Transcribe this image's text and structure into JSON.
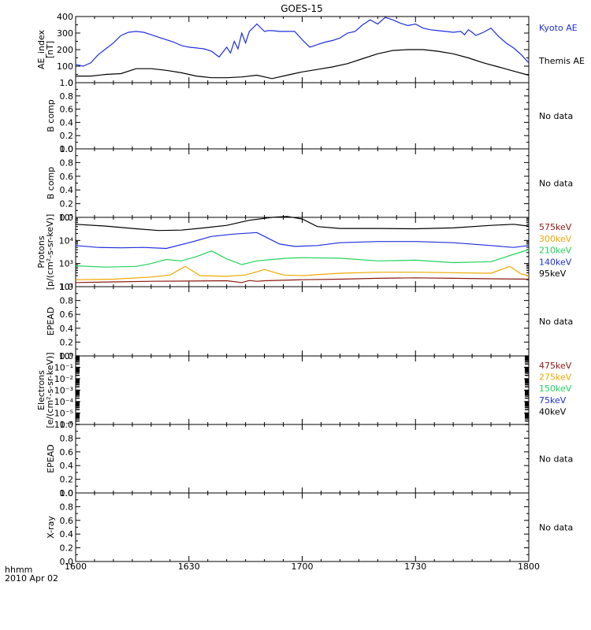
{
  "title": "GOES-15",
  "footer": {
    "hhmm": "hhmm",
    "date": "2010 Apr 02"
  },
  "x_axis": {
    "ticks": [
      {
        "value": 0,
        "label": "1600"
      },
      {
        "value": 30,
        "label": "1630"
      },
      {
        "value": 60,
        "label": "1700"
      },
      {
        "value": 90,
        "label": "1730"
      },
      {
        "value": 120,
        "label": "1800"
      }
    ],
    "minor_step": 5,
    "range": [
      0,
      120
    ]
  },
  "colors": {
    "black": "#000000",
    "blue": "#1f2fd8",
    "green": "#22d35b",
    "orange": "#f0a800",
    "darkred": "#8b1a12"
  },
  "chart_data": [
    {
      "type": "line",
      "panel": "ae",
      "ylabel_lines": [
        "AE_index",
        "[nT]"
      ],
      "ylim": [
        0,
        400
      ],
      "y_ticks": [
        {
          "v": 0,
          "l": "0"
        },
        {
          "v": 100,
          "l": "100"
        },
        {
          "v": 200,
          "l": "200"
        },
        {
          "v": 300,
          "l": "300"
        },
        {
          "v": 400,
          "l": "400"
        }
      ],
      "y_minor": [
        50,
        150,
        250,
        350
      ],
      "series": [
        {
          "name": "Kyoto AE",
          "color_key": "blue",
          "x": [
            0,
            2,
            4,
            6,
            8,
            10,
            12,
            14,
            16,
            18,
            20,
            22,
            24,
            26,
            28,
            30,
            32,
            34,
            36,
            38,
            40,
            41,
            42,
            43,
            44,
            45,
            46,
            48,
            50,
            51,
            52,
            54,
            56,
            58,
            60,
            62,
            64,
            66,
            68,
            70,
            72,
            74,
            76,
            78,
            80,
            82,
            84,
            86,
            88,
            90,
            92,
            94,
            96,
            98,
            100,
            102,
            103,
            104,
            105,
            106,
            108,
            110,
            112,
            114,
            116,
            118,
            120
          ],
          "y": [
            110,
            100,
            120,
            170,
            205,
            240,
            285,
            305,
            310,
            305,
            290,
            275,
            260,
            245,
            225,
            215,
            210,
            205,
            190,
            155,
            215,
            180,
            250,
            205,
            300,
            240,
            310,
            355,
            310,
            315,
            315,
            310,
            310,
            310,
            260,
            215,
            230,
            245,
            255,
            270,
            300,
            310,
            350,
            380,
            355,
            395,
            380,
            360,
            345,
            355,
            330,
            320,
            315,
            310,
            305,
            310,
            290,
            320,
            305,
            285,
            305,
            330,
            280,
            240,
            210,
            170,
            120
          ]
        },
        {
          "name": "Themis AE",
          "color_key": "black",
          "x": [
            0,
            4,
            8,
            12,
            16,
            20,
            24,
            28,
            32,
            36,
            40,
            44,
            48,
            52,
            56,
            60,
            64,
            68,
            72,
            76,
            80,
            84,
            88,
            92,
            96,
            100,
            104,
            108,
            112,
            116,
            120
          ],
          "y": [
            40,
            40,
            50,
            55,
            85,
            85,
            75,
            60,
            40,
            30,
            30,
            35,
            45,
            25,
            45,
            65,
            80,
            95,
            115,
            145,
            175,
            195,
            200,
            200,
            190,
            175,
            150,
            120,
            95,
            70,
            45
          ]
        }
      ]
    },
    {
      "type": "line",
      "panel": "bcomp1",
      "ylabel_lines": [
        "B comp"
      ],
      "ylim": [
        0,
        1
      ],
      "y_ticks": [
        {
          "v": 0,
          "l": "0.0"
        },
        {
          "v": 0.2,
          "l": "0.2"
        },
        {
          "v": 0.4,
          "l": "0.4"
        },
        {
          "v": 0.6,
          "l": "0.6"
        },
        {
          "v": 0.8,
          "l": "0.8"
        },
        {
          "v": 1,
          "l": "1.0"
        }
      ],
      "y_minor": [
        0.1,
        0.3,
        0.5,
        0.7,
        0.9
      ],
      "note": "No data",
      "series": []
    },
    {
      "type": "line",
      "panel": "bcomp2",
      "ylabel_lines": [
        "B comp"
      ],
      "ylim": [
        0,
        1
      ],
      "y_ticks": [
        {
          "v": 0,
          "l": "0.0"
        },
        {
          "v": 0.2,
          "l": "0.2"
        },
        {
          "v": 0.4,
          "l": "0.4"
        },
        {
          "v": 0.6,
          "l": "0.6"
        },
        {
          "v": 0.8,
          "l": "0.8"
        },
        {
          "v": 1,
          "l": "1.0"
        }
      ],
      "y_minor": [
        0.1,
        0.3,
        0.5,
        0.7,
        0.9
      ],
      "note": "No data",
      "series": []
    },
    {
      "type": "line",
      "panel": "protons",
      "scale": "log",
      "ylabel_lines": [
        "Protons",
        "[p/(cm²-s-sr-keV)]"
      ],
      "ylim": [
        100,
        100000
      ],
      "y_ticks": [
        {
          "v": 100,
          "l": "10²"
        },
        {
          "v": 1000,
          "l": "10³"
        },
        {
          "v": 10000,
          "l": "10⁴"
        },
        {
          "v": 100000,
          "l": "10⁵"
        }
      ],
      "series": [
        {
          "name": "575keV",
          "color_key": "darkred",
          "x": [
            0,
            10,
            20,
            30,
            40,
            44,
            46,
            48,
            50,
            60,
            70,
            80,
            90,
            100,
            110,
            120
          ],
          "y": [
            150,
            160,
            170,
            175,
            180,
            150,
            185,
            170,
            180,
            200,
            210,
            230,
            240,
            230,
            220,
            210
          ]
        },
        {
          "name": "300keV",
          "color_key": "orange",
          "x": [
            0,
            10,
            20,
            25,
            29,
            33,
            40,
            45,
            50,
            55,
            60,
            70,
            80,
            90,
            100,
            110,
            115,
            118,
            120
          ],
          "y": [
            200,
            210,
            260,
            320,
            750,
            300,
            280,
            320,
            550,
            320,
            300,
            380,
            420,
            420,
            400,
            380,
            750,
            350,
            300
          ]
        },
        {
          "name": "210keV",
          "color_key": "green",
          "x": [
            0,
            8,
            16,
            20,
            24,
            28,
            32,
            36,
            40,
            44,
            48,
            52,
            56,
            60,
            70,
            80,
            90,
            100,
            110,
            116,
            120
          ],
          "y": [
            800,
            700,
            750,
            1000,
            1500,
            1300,
            2000,
            3500,
            1600,
            900,
            1300,
            1500,
            1700,
            1800,
            1700,
            1300,
            1400,
            1100,
            1200,
            2500,
            4000
          ]
        },
        {
          "name": "140keV",
          "color_key": "blue",
          "x": [
            0,
            6,
            12,
            18,
            24,
            30,
            36,
            42,
            48,
            50,
            54,
            58,
            64,
            70,
            80,
            90,
            100,
            110,
            116,
            120
          ],
          "y": [
            6000,
            5000,
            4800,
            5000,
            4500,
            8000,
            15000,
            19000,
            22000,
            15000,
            7000,
            5500,
            6000,
            8000,
            9000,
            9000,
            8000,
            6000,
            5000,
            6000
          ]
        },
        {
          "name": "95keV",
          "color_key": "black",
          "x": [
            0,
            8,
            16,
            22,
            28,
            34,
            40,
            46,
            52,
            56,
            60,
            64,
            70,
            80,
            90,
            100,
            110,
            116,
            120
          ],
          "y": [
            50000,
            42000,
            32000,
            27000,
            28000,
            35000,
            45000,
            75000,
            100000,
            110000,
            85000,
            40000,
            33000,
            33000,
            32000,
            35000,
            45000,
            50000,
            42000
          ]
        }
      ]
    },
    {
      "type": "line",
      "panel": "epead1",
      "ylabel_lines": [
        "EPEAD"
      ],
      "ylim": [
        0,
        1
      ],
      "y_ticks": [
        {
          "v": 0,
          "l": "0.0"
        },
        {
          "v": 0.2,
          "l": "0.2"
        },
        {
          "v": 0.4,
          "l": "0.4"
        },
        {
          "v": 0.6,
          "l": "0.6"
        },
        {
          "v": 0.8,
          "l": "0.8"
        },
        {
          "v": 1,
          "l": "1.0"
        }
      ],
      "y_minor": [
        0.1,
        0.3,
        0.5,
        0.7,
        0.9
      ],
      "note": "No data",
      "series": []
    },
    {
      "type": "line",
      "panel": "electrons",
      "scale": "log",
      "ylabel_lines": [
        "Electrons",
        "[e/(cm²-s-sr-keV)]"
      ],
      "ylim": [
        1e-06,
        1
      ],
      "y_ticks": [
        {
          "v": 1,
          "l": "10⁰"
        },
        {
          "v": 0.1,
          "l": "10⁻¹"
        },
        {
          "v": 0.01,
          "l": "10⁻²"
        },
        {
          "v": 0.001,
          "l": "10⁻³"
        },
        {
          "v": 0.0001,
          "l": "10⁻⁴"
        },
        {
          "v": 1e-05,
          "l": "10⁻⁵"
        },
        {
          "v": 1e-06,
          "l": "10⁻⁶"
        }
      ],
      "legend": [
        {
          "name": "475keV",
          "color_key": "darkred"
        },
        {
          "name": "275keV",
          "color_key": "orange"
        },
        {
          "name": "150keV",
          "color_key": "green"
        },
        {
          "name": "75keV",
          "color_key": "blue"
        },
        {
          "name": "40keV",
          "color_key": "black"
        }
      ],
      "series": []
    },
    {
      "type": "line",
      "panel": "epead2",
      "ylabel_lines": [
        "EPEAD"
      ],
      "ylim": [
        0,
        1
      ],
      "y_ticks": [
        {
          "v": 0,
          "l": "0.0"
        },
        {
          "v": 0.2,
          "l": "0.2"
        },
        {
          "v": 0.4,
          "l": "0.4"
        },
        {
          "v": 0.6,
          "l": "0.6"
        },
        {
          "v": 0.8,
          "l": "0.8"
        },
        {
          "v": 1,
          "l": "1.0"
        }
      ],
      "y_minor": [
        0.1,
        0.3,
        0.5,
        0.7,
        0.9
      ],
      "note": "No data",
      "series": []
    },
    {
      "type": "line",
      "panel": "xray",
      "ylabel_lines": [
        "X-ray"
      ],
      "ylim": [
        0,
        1
      ],
      "y_ticks": [
        {
          "v": 0,
          "l": "0.0"
        },
        {
          "v": 0.2,
          "l": "0.2"
        },
        {
          "v": 0.4,
          "l": "0.4"
        },
        {
          "v": 0.6,
          "l": "0.6"
        },
        {
          "v": 0.8,
          "l": "0.8"
        },
        {
          "v": 1,
          "l": "1.0"
        }
      ],
      "y_minor": [
        0.1,
        0.3,
        0.5,
        0.7,
        0.9
      ],
      "note": "No data",
      "series": []
    }
  ]
}
